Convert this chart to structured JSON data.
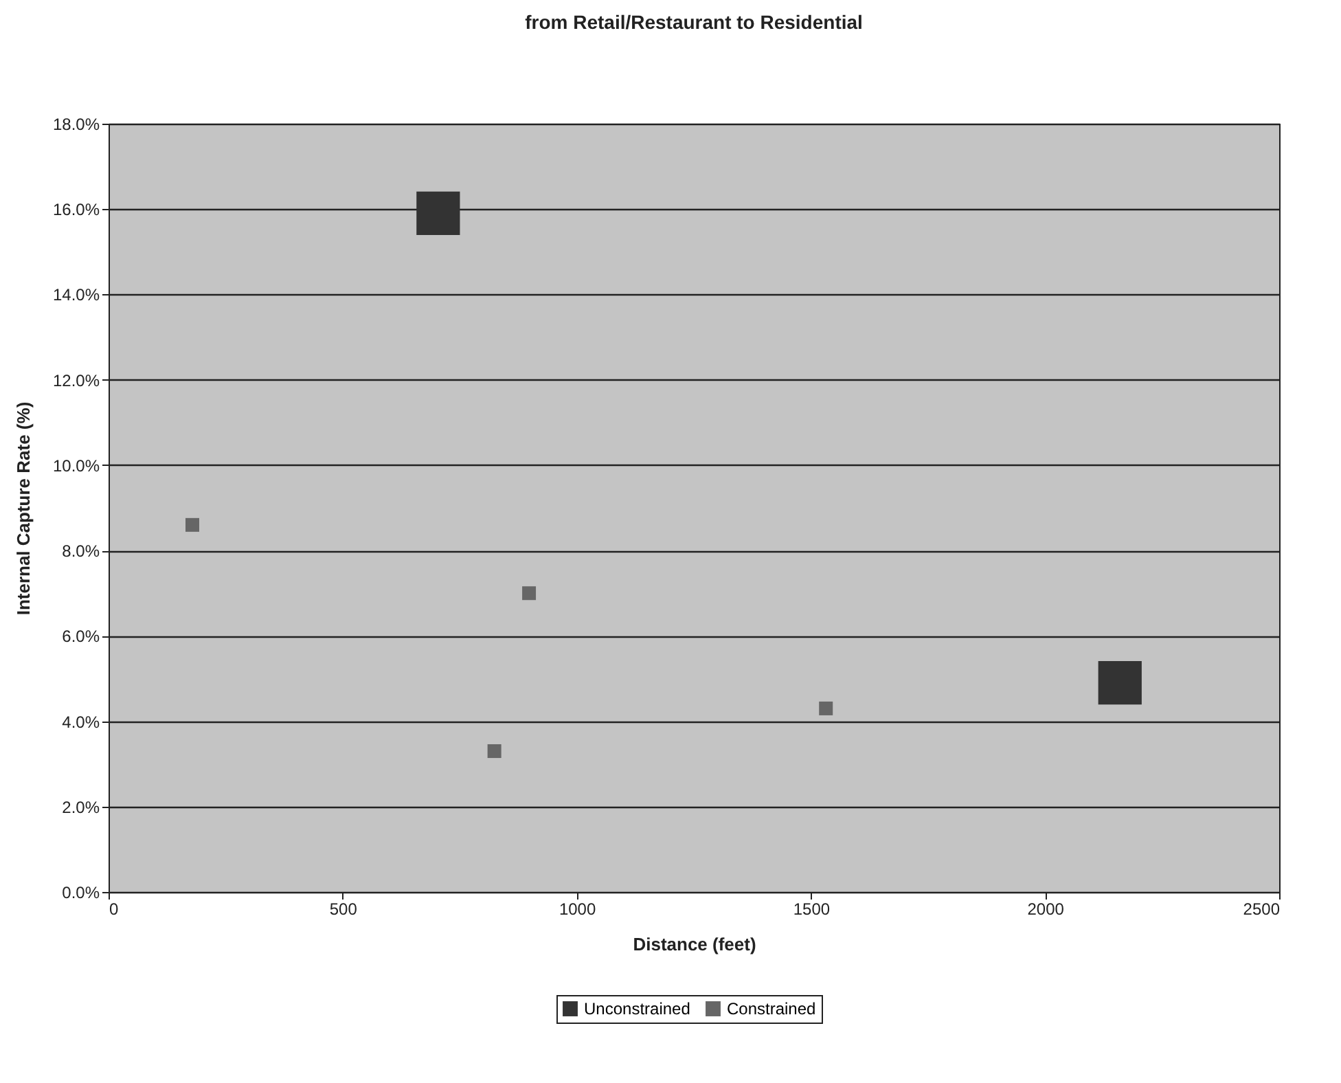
{
  "chart_data": {
    "type": "scatter",
    "title": "from Retail/Restaurant to Residential",
    "xlabel": "Distance (feet)",
    "ylabel": "Internal Capture Rate (%)",
    "series": [
      {
        "name": "Unconstrained",
        "color": "#333333",
        "x": [
          704,
          2160
        ],
        "values": [
          15.9,
          4.9
        ]
      },
      {
        "name": "Constrained",
        "color": "#666666",
        "x": [
          179,
          824,
          898,
          1532
        ],
        "values": [
          8.6,
          3.3,
          7.0,
          4.3
        ]
      }
    ],
    "xlim": [
      0,
      2500
    ],
    "xticks": [
      0,
      500,
      1000,
      1500,
      2000,
      2500
    ],
    "ylim": [
      0,
      18
    ],
    "yticks": [
      {
        "value": 0,
        "label": "0.0%"
      },
      {
        "value": 2,
        "label": "2.0%"
      },
      {
        "value": 4,
        "label": "4.0%"
      },
      {
        "value": 6,
        "label": "6.0%"
      },
      {
        "value": 8,
        "label": "8.0%"
      },
      {
        "value": 10,
        "label": "10.0%"
      },
      {
        "value": 12,
        "label": "12.0%"
      },
      {
        "value": 14,
        "label": "14.0%"
      },
      {
        "value": 16,
        "label": "16.0%"
      },
      {
        "value": 18,
        "label": "18.0%"
      }
    ],
    "grid": "y",
    "legend": "bottom",
    "marker": "square"
  }
}
